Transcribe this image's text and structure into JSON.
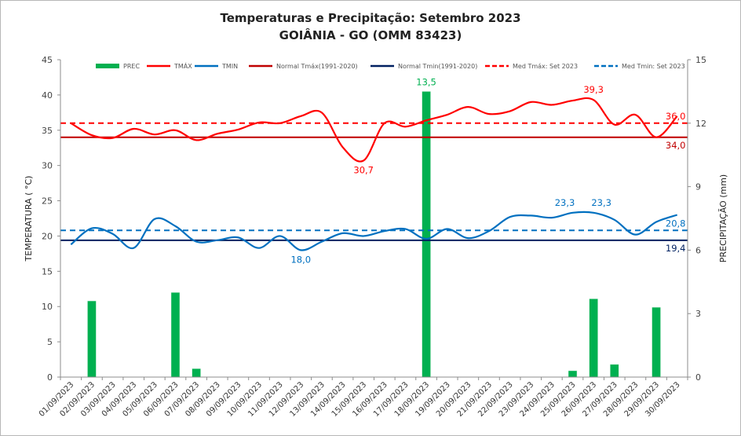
{
  "chart_data": {
    "type": "line",
    "title": "Temperaturas e Precipitação: Setembro 2023",
    "subtitle": "GOIÂNIA - GO (OMM 83423)",
    "ylabel": "TEMPERATURA ( °C)",
    "y2label": "PRECIPITAÇÃO (mm)",
    "ylim": [
      0,
      45
    ],
    "y2lim": [
      0,
      15
    ],
    "yticks": [
      "0",
      "5",
      "10",
      "15",
      "20",
      "25",
      "30",
      "35",
      "40",
      "45"
    ],
    "y2ticks": [
      "0",
      "3",
      "6",
      "9",
      "12",
      "15"
    ],
    "grid": false,
    "legend_position": "top",
    "categories": [
      "01/09/2023",
      "02/09/2023",
      "03/09/2023",
      "04/09/2023",
      "05/09/2023",
      "06/09/2023",
      "07/09/2023",
      "08/09/2023",
      "09/09/2023",
      "10/09/2023",
      "11/09/2023",
      "12/09/2023",
      "13/09/2023",
      "14/09/2023",
      "15/09/2023",
      "16/09/2023",
      "17/09/2023",
      "18/09/2023",
      "19/09/2023",
      "20/09/2023",
      "21/09/2023",
      "22/09/2023",
      "23/09/2023",
      "24/09/2023",
      "25/09/2023",
      "26/09/2023",
      "27/09/2023",
      "28/09/2023",
      "29/09/2023",
      "30/09/2023"
    ],
    "series": [
      {
        "name": "PREC",
        "type": "bar",
        "axis": "y2",
        "color": "#00b050",
        "values": [
          0,
          3.6,
          0,
          0,
          0,
          4.0,
          0.4,
          0,
          0,
          0,
          0,
          0,
          0,
          0,
          0,
          0,
          0,
          13.5,
          0,
          0,
          0,
          0,
          0,
          0,
          0.3,
          3.7,
          0.6,
          0,
          3.3,
          0
        ]
      },
      {
        "name": "TMÁX",
        "type": "line",
        "axis": "y",
        "color": "#ff0000",
        "values": [
          36.0,
          34.3,
          33.9,
          35.2,
          34.4,
          35.0,
          33.6,
          34.5,
          35.1,
          36.1,
          36.0,
          37.0,
          37.5,
          32.6,
          30.7,
          36.0,
          35.5,
          36.4,
          37.2,
          38.3,
          37.3,
          37.7,
          39.0,
          38.6,
          39.2,
          39.3,
          35.8,
          37.2,
          34.0,
          37.0
        ]
      },
      {
        "name": "TMIN",
        "type": "line",
        "axis": "y",
        "color": "#0070c0",
        "values": [
          18.8,
          21.1,
          20.3,
          18.3,
          22.4,
          21.4,
          19.2,
          19.4,
          19.8,
          18.3,
          20.0,
          18.0,
          19.2,
          20.4,
          20.0,
          20.7,
          21.0,
          19.6,
          21.0,
          19.7,
          20.7,
          22.7,
          22.9,
          22.6,
          23.3,
          23.3,
          22.3,
          20.2,
          22.0,
          23.0
        ]
      },
      {
        "name": "Normal Tmáx(1991-2020)",
        "type": "hline",
        "axis": "y",
        "color": "#c00000",
        "value": 34.0
      },
      {
        "name": "Normal Tmin(1991-2020)",
        "type": "hline",
        "axis": "y",
        "color": "#002060",
        "value": 19.4
      },
      {
        "name": "Med Tmáx: Set 2023",
        "type": "hline-dashed",
        "axis": "y",
        "color": "#ff0000",
        "value": 36.0
      },
      {
        "name": "Med Tmin: Set 2023",
        "type": "hline-dashed",
        "axis": "y",
        "color": "#0070c0",
        "value": 20.8
      }
    ],
    "annotations": [
      {
        "text": "13,5",
        "series": "PREC",
        "category": "18/09/2023",
        "color": "#00b050"
      },
      {
        "text": "30,7",
        "series": "TMÁX",
        "category": "15/09/2023",
        "color": "#ff0000"
      },
      {
        "text": "39,3",
        "series": "TMÁX",
        "category": "26/09/2023",
        "color": "#ff0000"
      },
      {
        "text": "36,0",
        "series": "Med Tmáx: Set 2023",
        "category": "30/09/2023",
        "color": "#ff0000"
      },
      {
        "text": "34,0",
        "series": "Normal Tmáx(1991-2020)",
        "category": "30/09/2023",
        "color": "#c00000"
      },
      {
        "text": "18,0",
        "series": "TMIN",
        "category": "12/09/2023",
        "color": "#0070c0"
      },
      {
        "text": "23,3",
        "series": "TMIN",
        "category": "25/09/2023",
        "color": "#0070c0"
      },
      {
        "text": "23,3",
        "series": "TMIN",
        "category": "26/09/2023",
        "color": "#0070c0"
      },
      {
        "text": "20,8",
        "series": "Med Tmin: Set 2023",
        "category": "30/09/2023",
        "color": "#0070c0"
      },
      {
        "text": "19,4",
        "series": "Normal Tmin(1991-2020)",
        "category": "30/09/2023",
        "color": "#002060"
      }
    ]
  }
}
